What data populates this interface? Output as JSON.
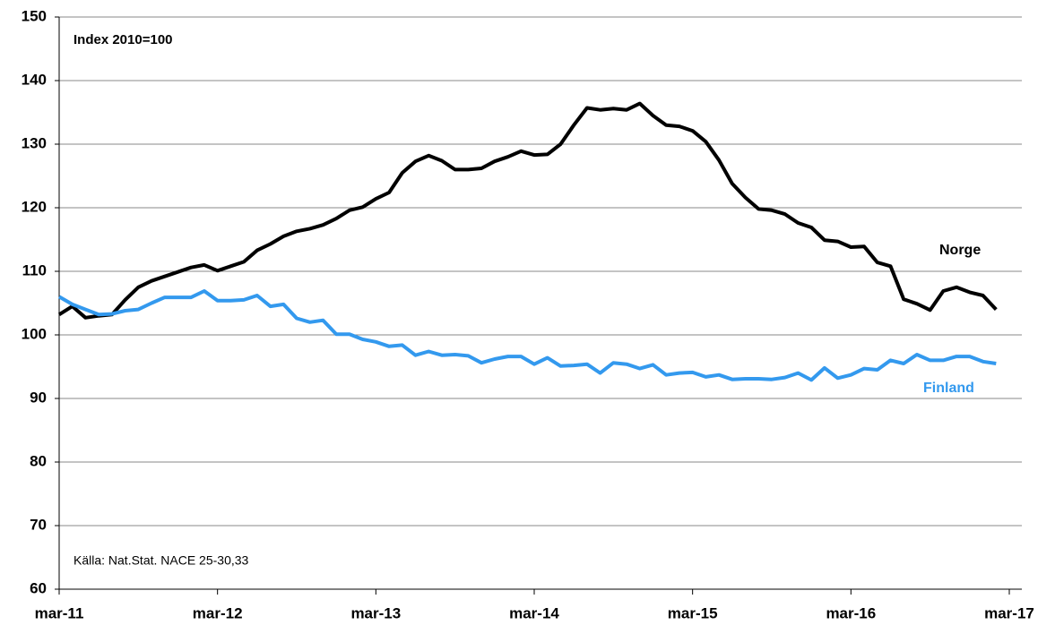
{
  "chart_data": {
    "type": "line",
    "annotations": [
      "Index 2010=100",
      "Källa: Nat.Stat. NACE 25-30,33"
    ],
    "categories": [
      "mar-11",
      null,
      null,
      null,
      null,
      null,
      null,
      null,
      null,
      null,
      null,
      null,
      "mar-12",
      null,
      null,
      null,
      null,
      null,
      null,
      null,
      null,
      null,
      null,
      null,
      "mar-13",
      null,
      null,
      null,
      null,
      null,
      null,
      null,
      null,
      null,
      null,
      null,
      "mar-14",
      null,
      null,
      null,
      null,
      null,
      null,
      null,
      null,
      null,
      null,
      null,
      "mar-15",
      null,
      null,
      null,
      null,
      null,
      null,
      null,
      null,
      null,
      null,
      null,
      "mar-16",
      null,
      null,
      null,
      null,
      null,
      null,
      null,
      null,
      null,
      null,
      null,
      "mar-17"
    ],
    "series": [
      {
        "name": "Norge",
        "color": "#000000",
        "values": [
          103.2,
          104.5,
          102.7,
          103,
          103.2,
          105.5,
          107.5,
          108.5,
          109.2,
          109.9,
          110.6,
          111,
          110.1,
          110.8,
          111.5,
          113.3,
          114.3,
          115.5,
          116.3,
          116.7,
          117.3,
          118.3,
          119.6,
          120.1,
          121.4,
          122.4,
          125.5,
          127.3,
          128.2,
          127.4,
          126,
          126,
          126.2,
          127.3,
          128,
          128.9,
          128.3,
          128.4,
          130,
          133,
          135.7,
          135.4,
          135.6,
          135.4,
          136.4,
          134.5,
          133,
          132.8,
          132.1,
          130.4,
          127.5,
          123.8,
          121.6,
          119.8,
          119.6,
          119,
          117.6,
          116.9,
          114.9,
          114.7,
          113.8,
          113.9,
          111.4,
          110.8,
          105.6,
          104.9,
          103.9,
          106.9,
          107.5,
          106.7,
          106.2,
          104,
          null
        ]
      },
      {
        "name": "Finland",
        "color": "#3399ee",
        "values": [
          106,
          104.8,
          104,
          103.2,
          103.3,
          103.8,
          104,
          105,
          105.9,
          105.9,
          105.9,
          106.9,
          105.4,
          105.4,
          105.5,
          106.2,
          104.5,
          104.8,
          102.6,
          102,
          102.3,
          100.1,
          100.1,
          99.3,
          98.9,
          98.2,
          98.4,
          96.8,
          97.4,
          96.8,
          96.9,
          96.7,
          95.6,
          96.2,
          96.6,
          96.6,
          95.4,
          96.4,
          95.1,
          95.2,
          95.4,
          94,
          95.6,
          95.4,
          94.7,
          95.3,
          93.7,
          94,
          94.1,
          93.4,
          93.7,
          93,
          93.1,
          93.1,
          93,
          93.3,
          94,
          92.9,
          94.8,
          93.2,
          93.7,
          94.7,
          94.5,
          96,
          95.5,
          96.9,
          96,
          96,
          96.6,
          96.6,
          95.8,
          95.5,
          null
        ]
      }
    ],
    "ylim": [
      60,
      150
    ],
    "yticks": [
      60,
      70,
      80,
      90,
      100,
      110,
      120,
      130,
      140,
      150
    ],
    "grid": true
  }
}
